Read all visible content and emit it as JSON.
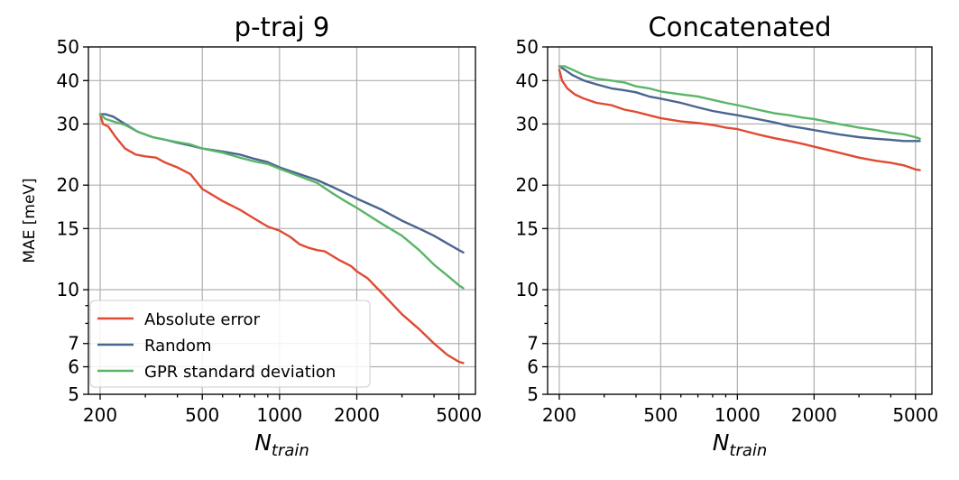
{
  "chart_data": [
    {
      "type": "line",
      "title": "p-traj 9",
      "xlabel": "N",
      "xlabel_subscript": "train",
      "ylabel": "MAE [meV]",
      "xscale": "log",
      "yscale": "log",
      "xlim": [
        180,
        5800
      ],
      "ylim": [
        5,
        50
      ],
      "xticks": [
        200,
        500,
        1000,
        2000,
        5000
      ],
      "xtick_labels": [
        "200",
        "500",
        "1000",
        "2000",
        "5000"
      ],
      "yticks": [
        5,
        6,
        7,
        10,
        15,
        20,
        30,
        40,
        50
      ],
      "ytick_labels": [
        "5",
        "6",
        "7",
        "10",
        "15",
        "20",
        "30",
        "40",
        "50"
      ],
      "grid": true,
      "legend_position": "lower-left",
      "series": [
        {
          "name": "Absolute error",
          "color": "#e04a32",
          "x": [
            200,
            205,
            215,
            230,
            250,
            275,
            300,
            330,
            360,
            400,
            450,
            500,
            550,
            600,
            700,
            800,
            900,
            1000,
            1100,
            1200,
            1300,
            1400,
            1500,
            1700,
            1900,
            2000,
            2200,
            2500,
            3000,
            3500,
            4000,
            4500,
            5000,
            5200
          ],
          "values": [
            32,
            30,
            29.5,
            27.5,
            25.5,
            24.5,
            24.2,
            24,
            23.2,
            22.5,
            21.5,
            19.5,
            18.7,
            18.0,
            17.0,
            16.0,
            15.2,
            14.8,
            14.2,
            13.5,
            13.2,
            13.0,
            12.9,
            12.2,
            11.7,
            11.3,
            10.8,
            9.8,
            8.5,
            7.7,
            7.0,
            6.5,
            6.2,
            6.15
          ]
        },
        {
          "name": "Random",
          "color": "#4a6590",
          "x": [
            200,
            210,
            225,
            250,
            280,
            320,
            360,
            400,
            450,
            500,
            600,
            700,
            800,
            900,
            1000,
            1200,
            1400,
            1600,
            1800,
            2000,
            2500,
            3000,
            3500,
            4000,
            4500,
            5000,
            5200
          ],
          "values": [
            32,
            32,
            31.5,
            30,
            28.5,
            27.5,
            27,
            26.5,
            26,
            25.5,
            25,
            24.5,
            23.8,
            23.3,
            22.5,
            21.5,
            20.7,
            19.8,
            19.0,
            18.3,
            17.0,
            15.8,
            15.0,
            14.3,
            13.6,
            13.0,
            12.8
          ]
        },
        {
          "name": "GPR standard deviation",
          "color": "#5ab568",
          "x": [
            200,
            210,
            225,
            250,
            280,
            320,
            360,
            400,
            450,
            500,
            600,
            700,
            800,
            900,
            1000,
            1200,
            1400,
            1600,
            1800,
            2000,
            2500,
            3000,
            3500,
            4000,
            4500,
            5000,
            5200
          ],
          "values": [
            32,
            31,
            30.5,
            29.8,
            28.5,
            27.5,
            27,
            26.6,
            26.2,
            25.5,
            24.8,
            24,
            23.4,
            23,
            22.3,
            21.2,
            20.3,
            19.0,
            18.0,
            17.2,
            15.5,
            14.3,
            13.0,
            11.8,
            11.0,
            10.3,
            10.1
          ]
        }
      ],
      "legend": {
        "entries": [
          "Absolute error",
          "Random",
          "GPR standard deviation"
        ]
      }
    },
    {
      "type": "line",
      "title": "Concatenated",
      "xlabel": "N",
      "xlabel_subscript": "train",
      "ylabel": "",
      "xscale": "log",
      "yscale": "log",
      "xlim": [
        180,
        5800
      ],
      "ylim": [
        5,
        50
      ],
      "xticks": [
        200,
        500,
        1000,
        2000,
        5000
      ],
      "xtick_labels": [
        "200",
        "500",
        "1000",
        "2000",
        "5000"
      ],
      "yticks": [
        5,
        6,
        7,
        10,
        15,
        20,
        30,
        40,
        50
      ],
      "ytick_labels": [
        "5",
        "6",
        "7",
        "10",
        "15",
        "20",
        "30",
        "40",
        "50"
      ],
      "grid": true,
      "series": [
        {
          "name": "Absolute error",
          "color": "#e04a32",
          "x": [
            200,
            205,
            215,
            230,
            250,
            280,
            320,
            360,
            400,
            450,
            500,
            600,
            700,
            800,
            900,
            1000,
            1200,
            1400,
            1600,
            1800,
            2000,
            2500,
            3000,
            3500,
            4000,
            4500,
            5000,
            5200
          ],
          "values": [
            43,
            40,
            38,
            36.5,
            35.5,
            34.5,
            34,
            33,
            32.5,
            31.8,
            31.2,
            30.5,
            30.2,
            29.8,
            29.3,
            29.0,
            28.0,
            27.3,
            26.8,
            26.3,
            25.8,
            24.8,
            24.0,
            23.5,
            23.2,
            22.8,
            22.2,
            22.1
          ]
        },
        {
          "name": "Random",
          "color": "#4a6590",
          "x": [
            200,
            210,
            225,
            250,
            280,
            320,
            360,
            400,
            450,
            500,
            600,
            700,
            800,
            900,
            1000,
            1200,
            1400,
            1600,
            1800,
            2000,
            2500,
            3000,
            3500,
            4000,
            4500,
            5000,
            5200
          ],
          "values": [
            44,
            43,
            41.5,
            40,
            39,
            38,
            37.5,
            37,
            36,
            35.5,
            34.5,
            33.5,
            32.7,
            32.2,
            31.8,
            31,
            30.3,
            29.6,
            29.2,
            28.8,
            28.0,
            27.5,
            27.2,
            27.0,
            26.8,
            26.8,
            26.8
          ]
        },
        {
          "name": "GPR standard deviation",
          "color": "#5ab568",
          "x": [
            200,
            210,
            225,
            250,
            280,
            320,
            360,
            400,
            450,
            500,
            600,
            700,
            800,
            900,
            1000,
            1200,
            1400,
            1600,
            1800,
            2000,
            2500,
            3000,
            3500,
            4000,
            4500,
            5000,
            5200
          ],
          "values": [
            44,
            44,
            43,
            41.5,
            40.5,
            40,
            39.5,
            38.5,
            38,
            37.2,
            36.5,
            36,
            35.2,
            34.5,
            34,
            33,
            32.2,
            31.8,
            31.3,
            31,
            30,
            29.3,
            28.8,
            28.3,
            28.0,
            27.5,
            27.2
          ]
        }
      ]
    }
  ]
}
